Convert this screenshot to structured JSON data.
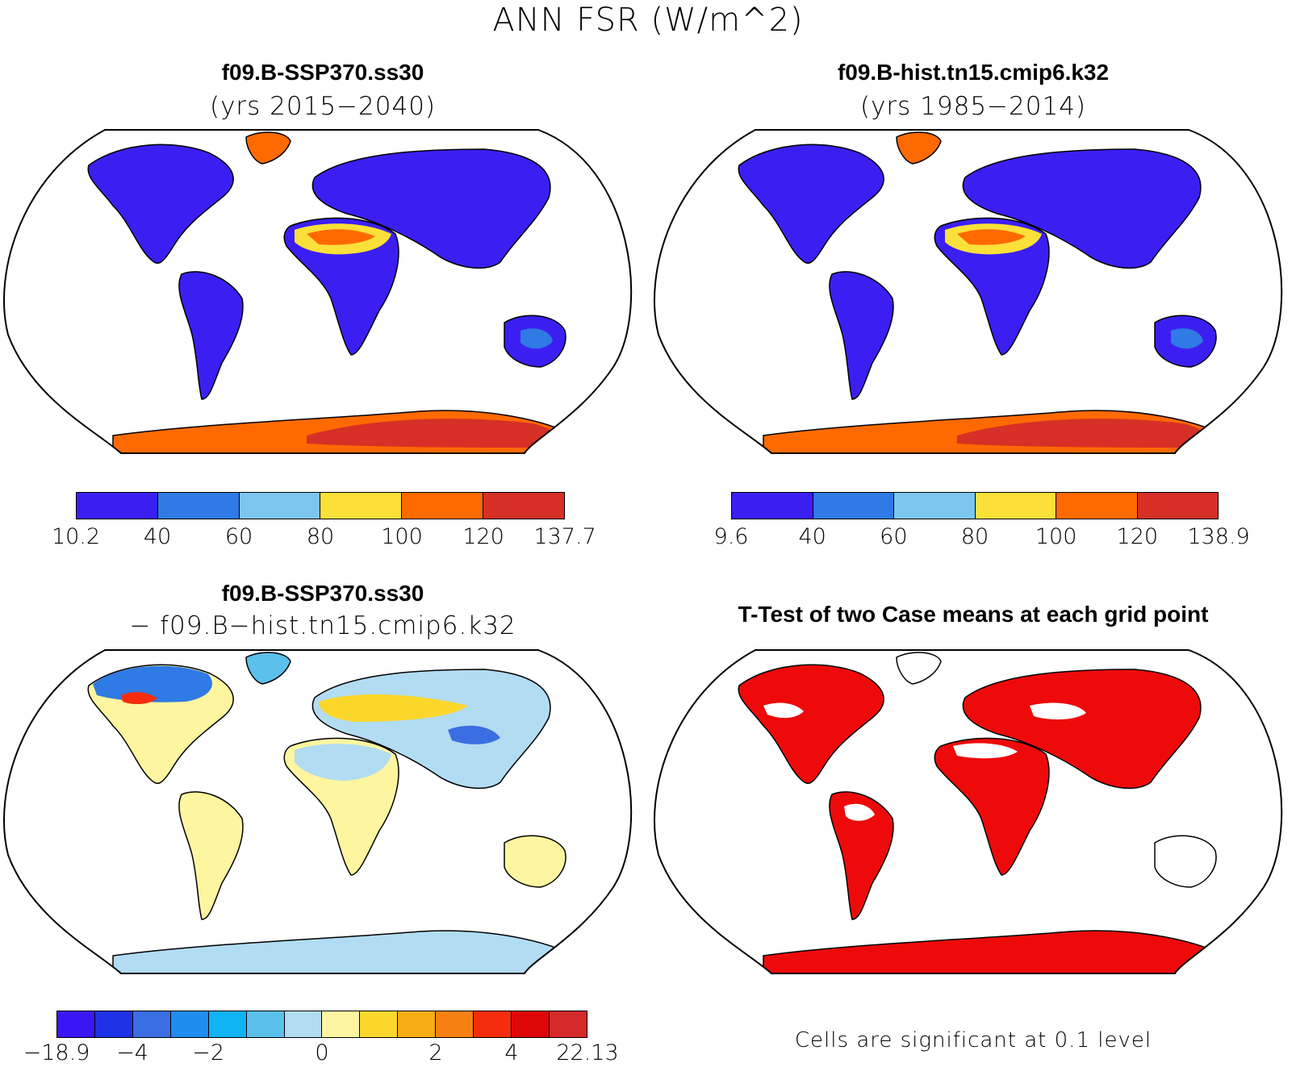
{
  "figure": {
    "title": "ANN FSR (W/m^2)"
  },
  "panels": [
    {
      "id": "top-left",
      "title": "f09.B-SSP370.ss30",
      "subtitle": "(yrs 2015−2040)",
      "colorbar": {
        "colors": [
          "#3b1ff2",
          "#2f7ae4",
          "#7cc6ee",
          "#fbe03a",
          "#ff6a00",
          "#d63027"
        ],
        "tick_labels": [
          "10.2",
          "40",
          "60",
          "80",
          "100",
          "120",
          "137.7"
        ]
      }
    },
    {
      "id": "top-right",
      "title": "f09.B-hist.tn15.cmip6.k32",
      "subtitle": "(yrs 1985−2014)",
      "colorbar": {
        "colors": [
          "#3b1ff2",
          "#2f7ae4",
          "#7cc6ee",
          "#fbe03a",
          "#ff6a00",
          "#d63027"
        ],
        "tick_labels": [
          "9.6",
          "40",
          "60",
          "80",
          "100",
          "120",
          "138.9"
        ]
      }
    },
    {
      "id": "bottom-left",
      "title": "f09.B-SSP370.ss30",
      "subtitle": "− f09.B−hist.tn15.cmip6.k32",
      "colorbar": {
        "colors": [
          "#3b16f5",
          "#1f32e6",
          "#3a6ee2",
          "#1f8cf0",
          "#10b3f3",
          "#5cc0ec",
          "#b2dcf2",
          "#fdf5a0",
          "#fcd72b",
          "#f7ad14",
          "#f78012",
          "#f62d0c",
          "#de0606",
          "#d42a2a"
        ],
        "tick_labels": [
          "−18.9",
          "−4",
          "−2",
          "0",
          "2",
          "4",
          "22.13"
        ]
      }
    },
    {
      "id": "bottom-right",
      "title": "T-Test of two Case means at each grid point",
      "note": "Cells are significant at 0.1 level",
      "significant_color": "#ee0a0a"
    }
  ]
}
